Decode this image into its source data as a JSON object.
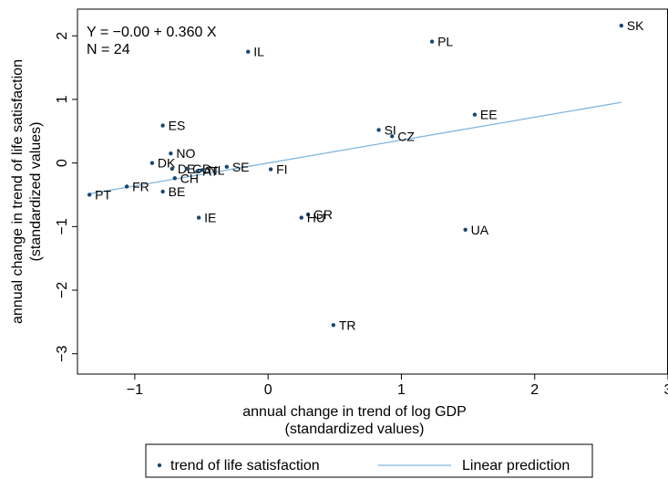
{
  "chart_data": {
    "type": "scatter",
    "annotation_lines": [
      "Y = −0.00 + 0.360 X",
      "N = 24"
    ],
    "xlabel_lines": [
      "annual change in trend of log GDP",
      "(standardized values)"
    ],
    "ylabel_lines": [
      "annual change in trend of life satisfaction",
      "(standardized values)"
    ],
    "xlim": [
      -1.43,
      3.0
    ],
    "ylim": [
      -3.32,
      2.42
    ],
    "x_ticks": [
      {
        "value": -1,
        "label": "−1"
      },
      {
        "value": 0,
        "label": "0"
      },
      {
        "value": 1,
        "label": "1"
      },
      {
        "value": 2,
        "label": "2"
      },
      {
        "value": 3,
        "label": "3"
      }
    ],
    "y_ticks": [
      {
        "value": -3,
        "label": "−3"
      },
      {
        "value": -2,
        "label": "−2"
      },
      {
        "value": -1,
        "label": "−1"
      },
      {
        "value": 0,
        "label": "0"
      },
      {
        "value": 1,
        "label": "1"
      },
      {
        "value": 2,
        "label": "2"
      }
    ],
    "grid": false,
    "series": [
      {
        "name": "trend of life satisfaction",
        "kind": "scatter",
        "color": "#1a476f",
        "points": [
          {
            "label": "SK",
            "x": 2.65,
            "y": 2.16
          },
          {
            "label": "PL",
            "x": 1.23,
            "y": 1.91
          },
          {
            "label": "IL",
            "x": -0.15,
            "y": 1.75
          },
          {
            "label": "EE",
            "x": 1.55,
            "y": 0.76
          },
          {
            "label": "ES",
            "x": -0.79,
            "y": 0.59
          },
          {
            "label": "SI",
            "x": 0.83,
            "y": 0.52
          },
          {
            "label": "CZ",
            "x": 0.93,
            "y": 0.42
          },
          {
            "label": "NO",
            "x": -0.73,
            "y": 0.15
          },
          {
            "label": "DK",
            "x": -0.87,
            "y": 0.0
          },
          {
            "label": "DE",
            "x": -0.72,
            "y": -0.09
          },
          {
            "label": "GB",
            "x": -0.61,
            "y": -0.09
          },
          {
            "label": "AT",
            "x": -0.53,
            "y": -0.13
          },
          {
            "label": "NL",
            "x": -0.49,
            "y": -0.11
          },
          {
            "label": "SE",
            "x": -0.31,
            "y": -0.06
          },
          {
            "label": "FI",
            "x": 0.02,
            "y": -0.1
          },
          {
            "label": "CH",
            "x": -0.7,
            "y": -0.24
          },
          {
            "label": "FR",
            "x": -1.06,
            "y": -0.37
          },
          {
            "label": "BE",
            "x": -0.79,
            "y": -0.45
          },
          {
            "label": "PT",
            "x": -1.34,
            "y": -0.5
          },
          {
            "label": "IE",
            "x": -0.52,
            "y": -0.86
          },
          {
            "label": "GR",
            "x": 0.3,
            "y": -0.81
          },
          {
            "label": "HU",
            "x": 0.25,
            "y": -0.86
          },
          {
            "label": "UA",
            "x": 1.48,
            "y": -1.05
          },
          {
            "label": "TR",
            "x": 0.49,
            "y": -2.55
          }
        ]
      },
      {
        "name": "Linear prediction",
        "kind": "line",
        "color": "#7fb6df",
        "points": [
          {
            "x": -1.34,
            "y": -0.483
          },
          {
            "x": 2.65,
            "y": 0.954
          }
        ]
      }
    ],
    "legend": {
      "placement": "bottom"
    }
  }
}
